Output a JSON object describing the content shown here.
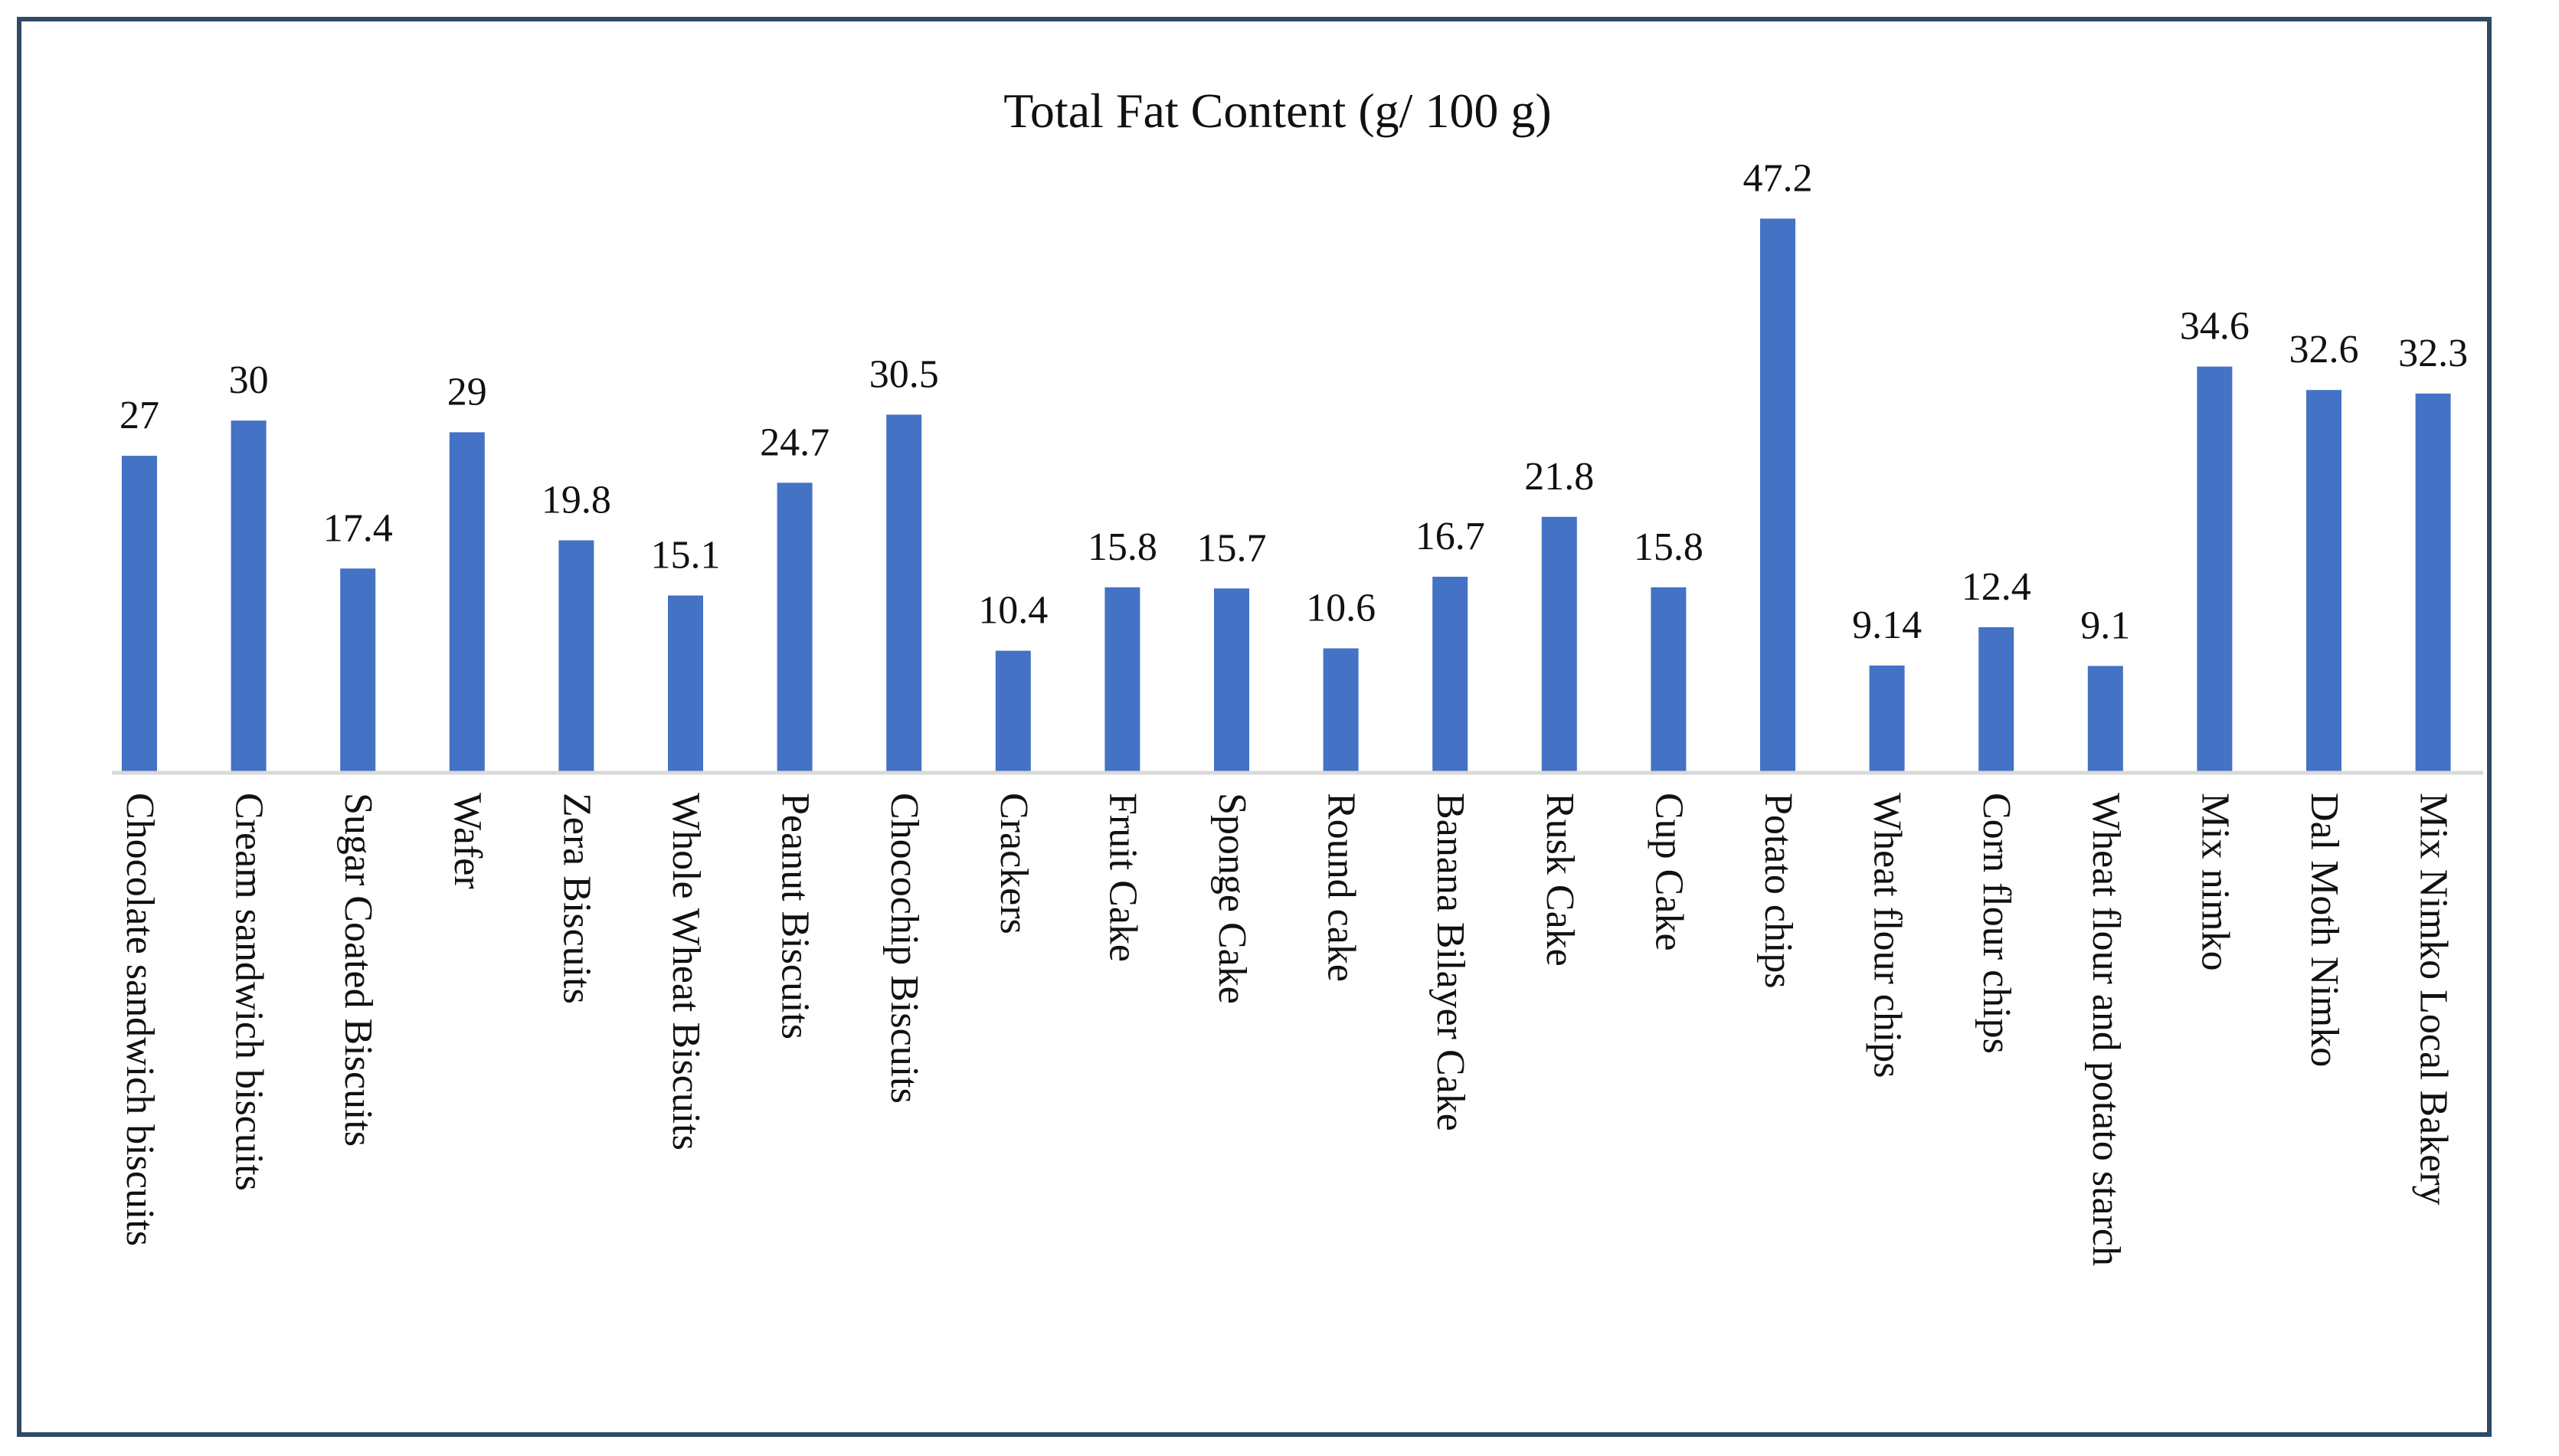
{
  "chart_data": {
    "type": "bar",
    "title": "Total Fat Content (g/ 100 g)",
    "xlabel": "",
    "ylabel": "",
    "categories": [
      "Chocolate sandwich biscuits",
      "Cream sandwich biscuits",
      "Sugar Coated Biscuits",
      "Wafer",
      "Zera Biscuits",
      "Whole Wheat Biscuits",
      "Peanut Biscuits",
      "Chocochip Biscuits",
      "Crackers",
      "Fruit Cake",
      "Sponge Cake",
      "Round cake",
      "Banana Bilayer Cake",
      "Rusk Cake",
      "Cup Cake",
      "Potato chips",
      "Wheat flour chips",
      "Corn flour chips",
      "Wheat flour and potato starch",
      "Mix nimko",
      "Dal Moth Nimko",
      "Mix Nimko Local Bakery"
    ],
    "values": [
      27,
      30,
      17.4,
      29,
      19.8,
      15.1,
      24.7,
      30.5,
      10.4,
      15.8,
      15.7,
      10.6,
      16.7,
      21.8,
      15.8,
      47.2,
      9.14,
      12.4,
      9.1,
      34.6,
      32.6,
      32.3
    ],
    "value_labels": [
      "27",
      "30",
      "17.4",
      "29",
      "19.8",
      "15.1",
      "24.7",
      "30.5",
      "10.4",
      "15.8",
      "15.7",
      "10.6",
      "16.7",
      "21.8",
      "15.8",
      "47.2",
      "9.14",
      "12.4",
      "9.1",
      "34.6",
      "32.6",
      "32.3"
    ],
    "ylim": [
      0,
      50
    ],
    "grid": false,
    "legend": "none",
    "colors": {
      "bar": "#4472c4",
      "axis": "#d9d9d9",
      "frame": "#2f4a66"
    }
  }
}
